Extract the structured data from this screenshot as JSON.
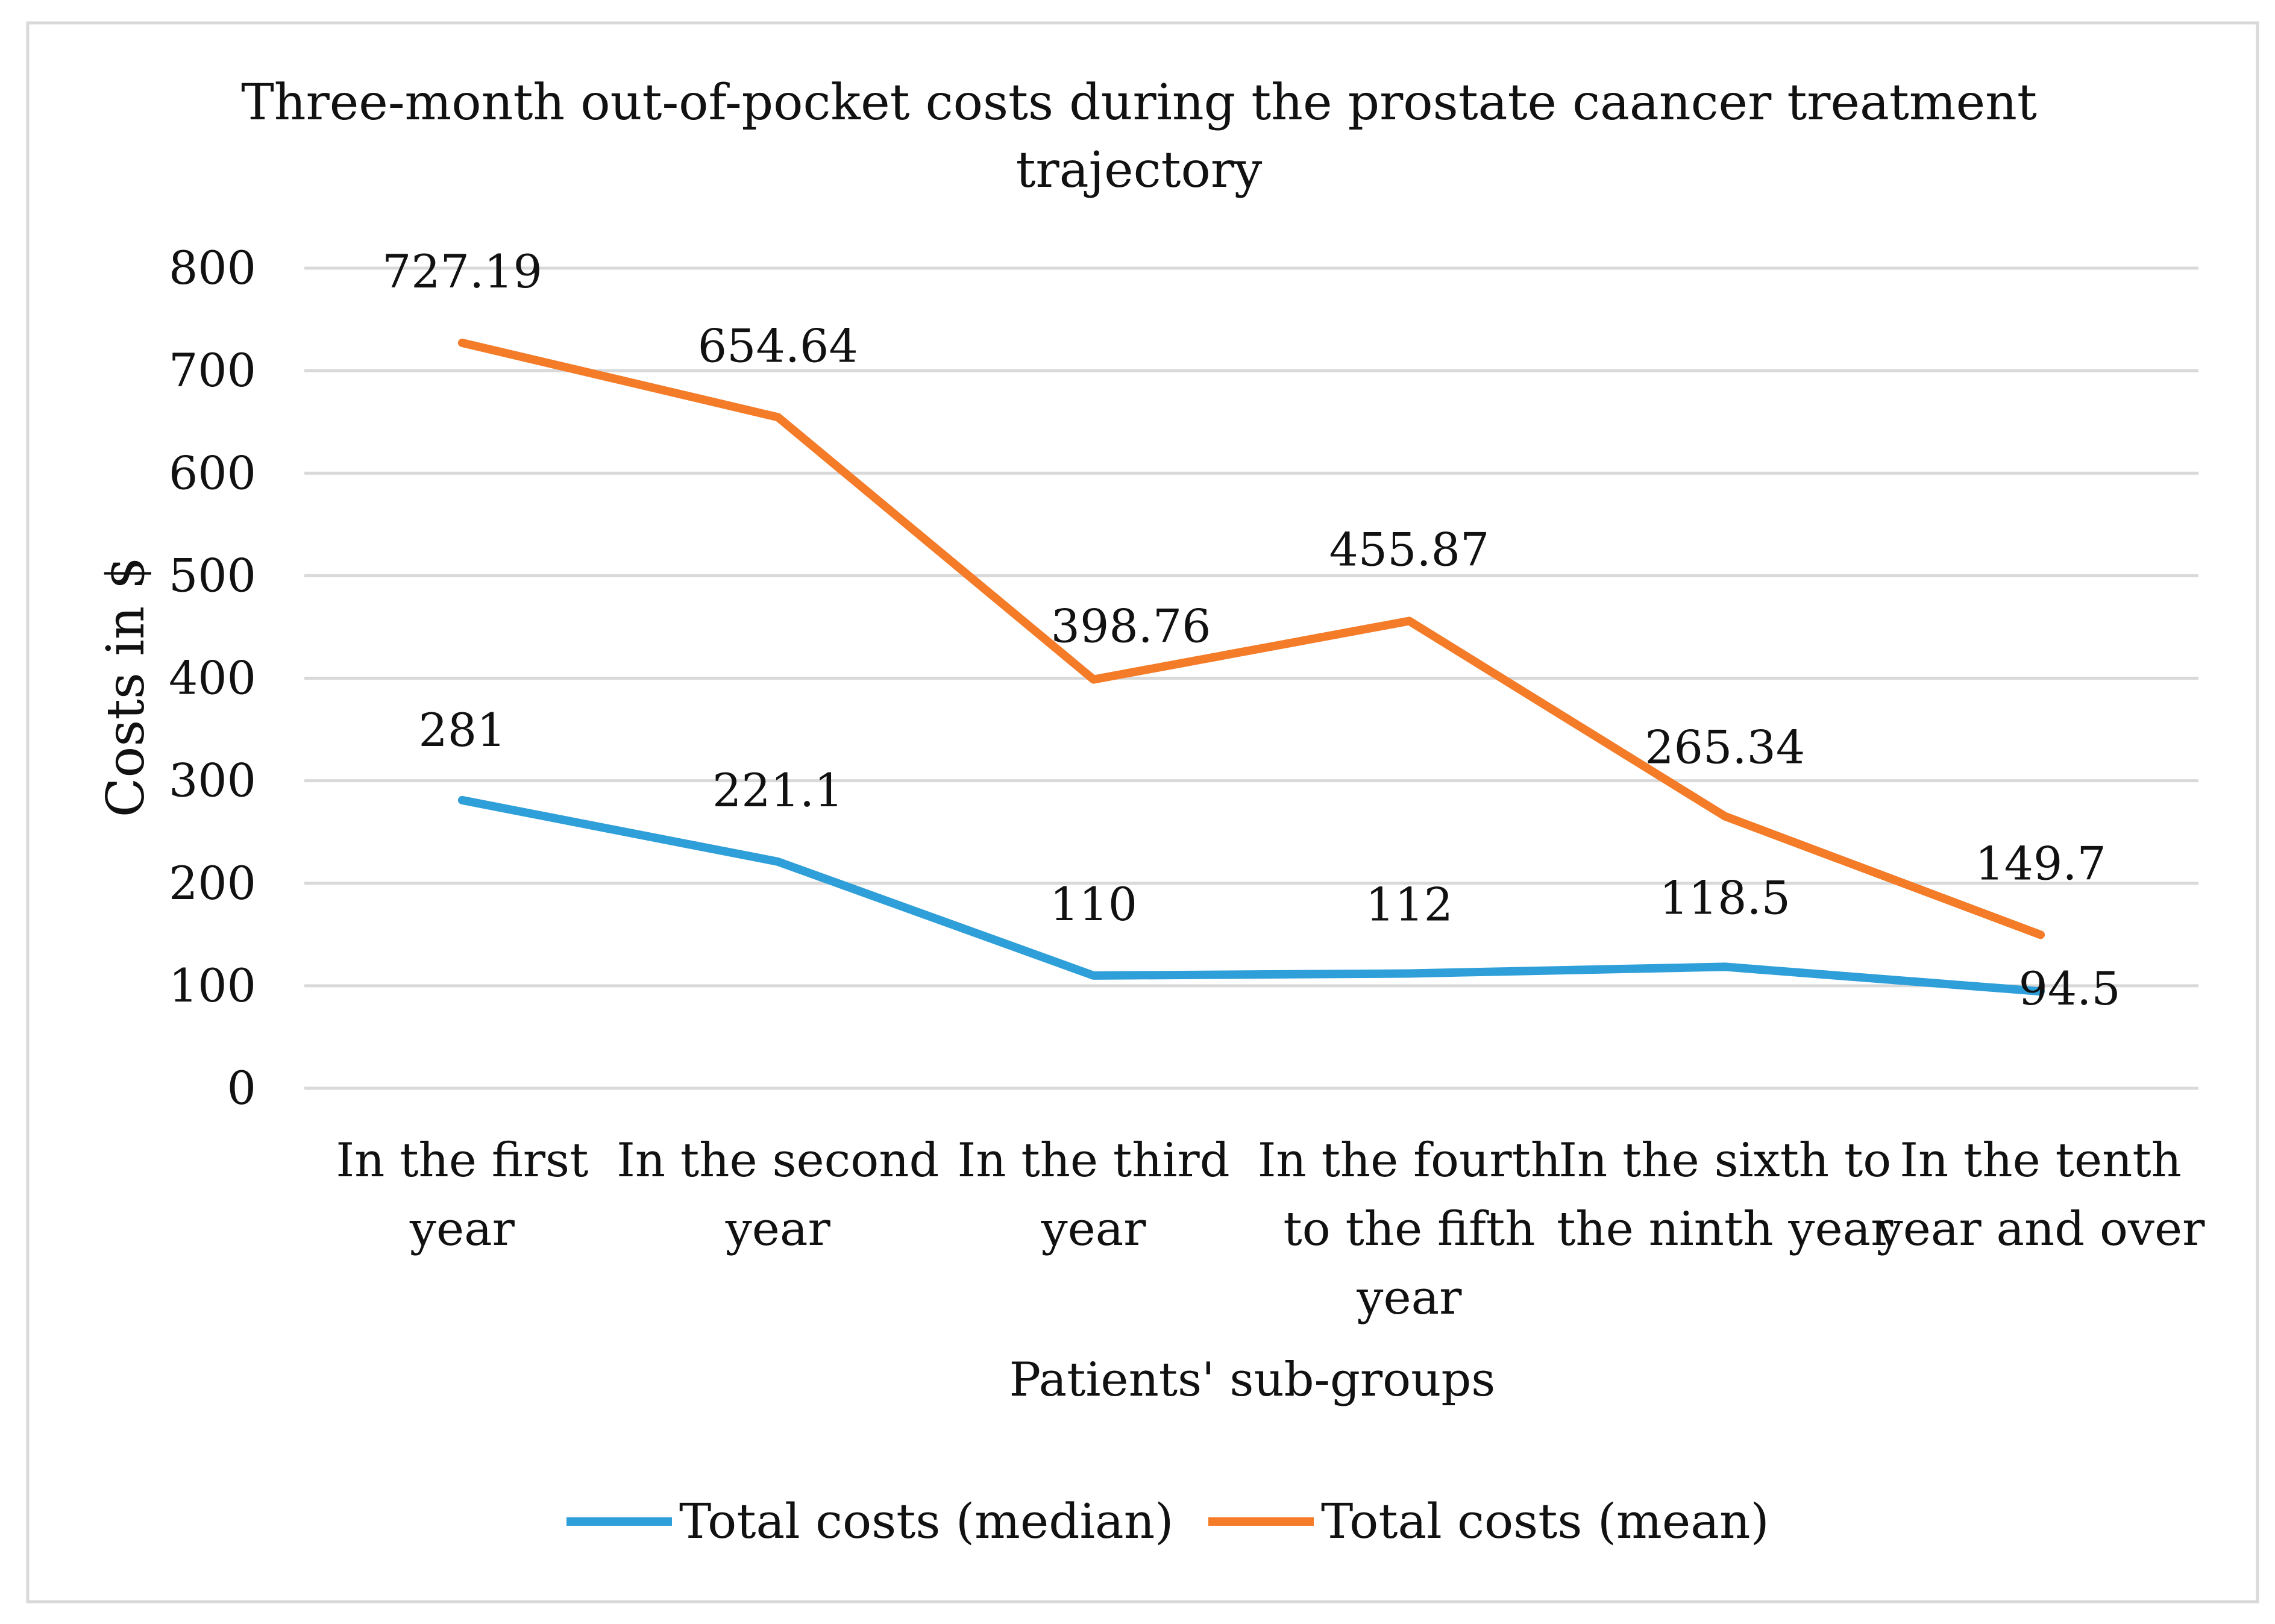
{
  "chart_data": {
    "type": "line",
    "title_lines": [
      "Three-month out-of-pocket costs during the prostate caancer treatment",
      "trajectory"
    ],
    "xlabel": "Patients' sub-groups",
    "ylabel": "Costs in $",
    "ylim": [
      0,
      800
    ],
    "yticks": [
      0,
      100,
      200,
      300,
      400,
      500,
      600,
      700,
      800
    ],
    "grid": true,
    "legend_position": "bottom",
    "categories": [
      [
        "In the first",
        "year"
      ],
      [
        "In the second",
        "year"
      ],
      [
        "In the third",
        "year"
      ],
      [
        "In the fourth",
        "to the fifth",
        "year"
      ],
      [
        "In the sixth to",
        "the ninth year"
      ],
      [
        "In the tenth",
        "year and over"
      ]
    ],
    "series": [
      {
        "name": "Total costs (median)",
        "color": "#2E9FD8",
        "values": [
          281,
          221.1,
          110,
          112,
          118.5,
          94.5
        ],
        "labels": [
          "281",
          "221.1",
          "110",
          "112",
          "118.5",
          "94.5"
        ]
      },
      {
        "name": "Total costs (mean)",
        "color": "#F47B28",
        "values": [
          727.19,
          654.64,
          398.76,
          455.87,
          265.34,
          149.7
        ],
        "labels": [
          "727.19",
          "654.64",
          "398.76",
          "455.87",
          "265.34",
          "149.7"
        ]
      }
    ]
  }
}
